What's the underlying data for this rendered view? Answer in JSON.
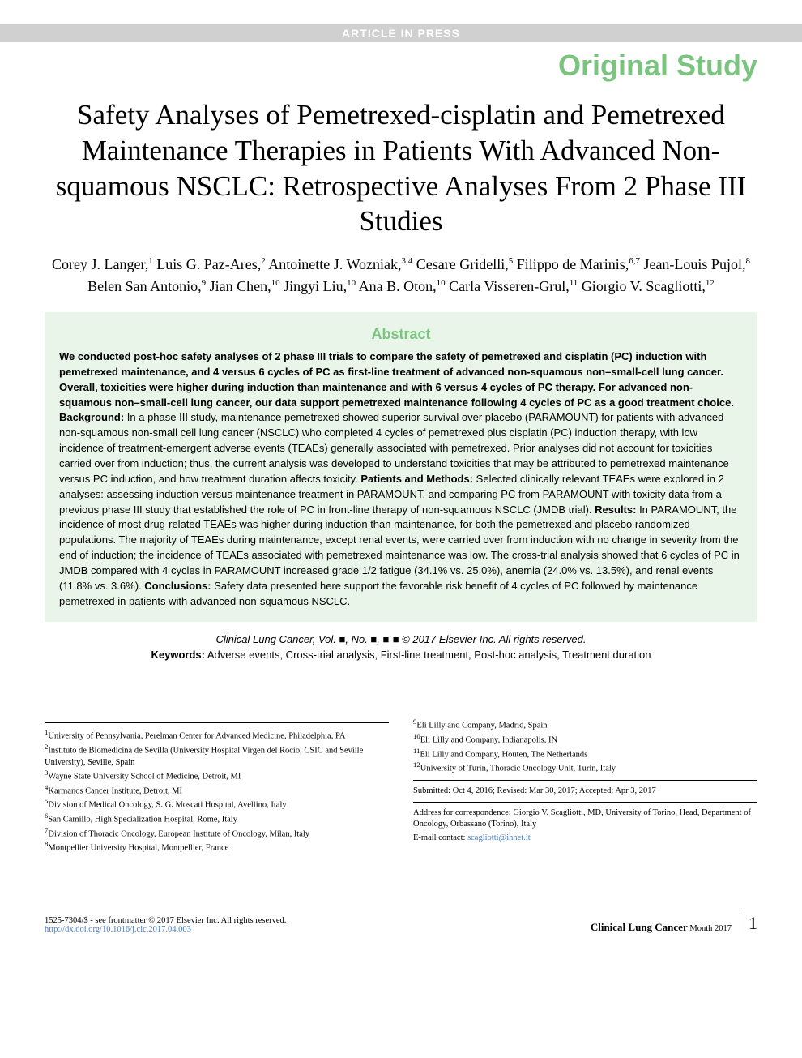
{
  "banner": "ARTICLE IN PRESS",
  "studyType": "Original Study",
  "title": "Safety Analyses of Pemetrexed-cisplatin and Pemetrexed Maintenance Therapies in Patients With Advanced Non-squamous NSCLC: Retrospective Analyses From 2 Phase III Studies",
  "authors": [
    {
      "name": "Corey J. Langer",
      "aff": "1"
    },
    {
      "name": "Luis G. Paz-Ares",
      "aff": "2"
    },
    {
      "name": "Antoinette J. Wozniak",
      "aff": "3,4"
    },
    {
      "name": "Cesare Gridelli",
      "aff": "5"
    },
    {
      "name": "Filippo de Marinis",
      "aff": "6,7"
    },
    {
      "name": "Jean-Louis Pujol",
      "aff": "8"
    },
    {
      "name": "Belen San Antonio",
      "aff": "9"
    },
    {
      "name": "Jian Chen",
      "aff": "10"
    },
    {
      "name": "Jingyi Liu",
      "aff": "10"
    },
    {
      "name": "Ana B. Oton",
      "aff": "10"
    },
    {
      "name": "Carla Visseren-Grul",
      "aff": "11"
    },
    {
      "name": "Giorgio V. Scagliotti",
      "aff": "12"
    }
  ],
  "abstract": {
    "heading": "Abstract",
    "lead": "We conducted post-hoc safety analyses of 2 phase III trials to compare the safety of pemetrexed and cisplatin (PC) induction with pemetrexed maintenance, and 4 versus 6 cycles of PC as first-line treatment of advanced non-squamous non–small-cell lung cancer. Overall, toxicities were higher during induction than maintenance and with 6 versus 4 cycles of PC therapy. For advanced non-squamous non–small-cell lung cancer, our data support pemetrexed maintenance following 4 cycles of PC as a good treatment choice.",
    "backgroundLabel": "Background:",
    "background": " In a phase III study, maintenance pemetrexed showed superior survival over placebo (PARAMOUNT) for patients with advanced non-squamous non-small cell lung cancer (NSCLC) who completed 4 cycles of pemetrexed plus cisplatin (PC) induction therapy, with low incidence of treatment-emergent adverse events (TEAEs) generally associated with pemetrexed. Prior analyses did not account for toxicities carried over from induction; thus, the current analysis was developed to understand toxicities that may be attributed to pemetrexed maintenance versus PC induction, and how treatment duration affects toxicity. ",
    "methodsLabel": "Patients and Methods:",
    "methods": " Selected clinically relevant TEAEs were explored in 2 analyses: assessing induction versus maintenance treatment in PARAMOUNT, and comparing PC from PARAMOUNT with toxicity data from a previous phase III study that established the role of PC in front-line therapy of non-squamous NSCLC (JMDB trial). ",
    "resultsLabel": "Results:",
    "results": " In PARAMOUNT, the incidence of most drug-related TEAEs was higher during induction than maintenance, for both the pemetrexed and placebo randomized populations. The majority of TEAEs during maintenance, except renal events, were carried over from induction with no change in severity from the end of induction; the incidence of TEAEs associated with pemetrexed maintenance was low. The cross-trial analysis showed that 6 cycles of PC in JMDB compared with 4 cycles in PARAMOUNT increased grade 1/2 fatigue (34.1% vs. 25.0%), anemia (24.0% vs. 13.5%), and renal events (11.8% vs. 3.6%). ",
    "conclusionsLabel": "Conclusions:",
    "conclusions": " Safety data presented here support the favorable risk benefit of 4 cycles of PC followed by maintenance pemetrexed in patients with advanced non-squamous NSCLC."
  },
  "citation": {
    "journal": "Clinical Lung Cancer,",
    "vol": " Vol. ■, No. ■, ■-■ © 2017 Elsevier Inc. All rights reserved."
  },
  "keywordsLabel": "Keywords:",
  "keywords": " Adverse events, Cross-trial analysis, First-line treatment, Post-hoc analysis, Treatment duration",
  "affiliationsLeft": [
    {
      "n": "1",
      "text": "University of Pennsylvania, Perelman Center for Advanced Medicine, Philadelphia, PA"
    },
    {
      "n": "2",
      "text": "Instituto de Biomedicina de Sevilla (University Hospital Virgen del Rocío, CSIC and Seville University), Seville, Spain"
    },
    {
      "n": "3",
      "text": "Wayne State University School of Medicine, Detroit, MI"
    },
    {
      "n": "4",
      "text": "Karmanos Cancer Institute, Detroit, MI"
    },
    {
      "n": "5",
      "text": "Division of Medical Oncology, S. G. Moscati Hospital, Avellino, Italy"
    },
    {
      "n": "6",
      "text": "San Camillo, High Specialization Hospital, Rome, Italy"
    },
    {
      "n": "7",
      "text": "Division of Thoracic Oncology, European Institute of Oncology, Milan, Italy"
    },
    {
      "n": "8",
      "text": "Montpellier University Hospital, Montpellier, France"
    }
  ],
  "affiliationsRight": [
    {
      "n": "9",
      "text": "Eli Lilly and Company, Madrid, Spain"
    },
    {
      "n": "10",
      "text": "Eli Lilly and Company, Indianapolis, IN"
    },
    {
      "n": "11",
      "text": "Eli Lilly and Company, Houten, The Netherlands"
    },
    {
      "n": "12",
      "text": "University of Turin, Thoracic Oncology Unit, Turin, Italy"
    }
  ],
  "submitted": "Submitted: Oct 4, 2016; Revised: Mar 30, 2017; Accepted: Apr 3, 2017",
  "correspondence": "Address for correspondence: Giorgio V. Scagliotti, MD, University of Torino, Head, Department of Oncology, Orbassano (Torino), Italy",
  "emailLabel": "E-mail contact: ",
  "email": "scagliotti@ihnet.it",
  "footer": {
    "copyright": "1525-7304/$ - see frontmatter © 2017 Elsevier Inc. All rights reserved.",
    "doi": "http://dx.doi.org/10.1016/j.clc.2017.04.003",
    "journal": "Clinical Lung Cancer",
    "issue": "Month 2017",
    "page": "1"
  },
  "colors": {
    "accent_green": "#7bc47f",
    "abstract_bg": "#e9f5e9",
    "banner_bg": "#d0d0d0",
    "link": "#4a7bc4"
  }
}
